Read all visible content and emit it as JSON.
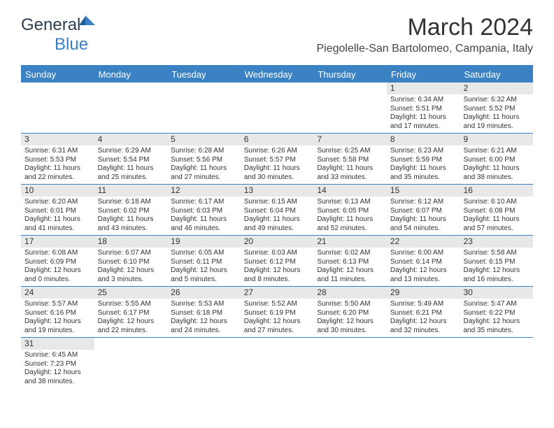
{
  "logo": {
    "part1": "General",
    "part2": "Blue"
  },
  "title": "March 2024",
  "location": "Piegolelle-San Bartolomeo, Campania, Italy",
  "colors": {
    "header_bg": "#3b82c4",
    "header_fg": "#ffffff",
    "daynum_bg": "#e8e8e8",
    "border": "#3b82c4",
    "text": "#333333"
  },
  "day_headers": [
    "Sunday",
    "Monday",
    "Tuesday",
    "Wednesday",
    "Thursday",
    "Friday",
    "Saturday"
  ],
  "weeks": [
    [
      {
        "n": "",
        "sunrise": "",
        "sunset": "",
        "daylight1": "",
        "daylight2": ""
      },
      {
        "n": "",
        "sunrise": "",
        "sunset": "",
        "daylight1": "",
        "daylight2": ""
      },
      {
        "n": "",
        "sunrise": "",
        "sunset": "",
        "daylight1": "",
        "daylight2": ""
      },
      {
        "n": "",
        "sunrise": "",
        "sunset": "",
        "daylight1": "",
        "daylight2": ""
      },
      {
        "n": "",
        "sunrise": "",
        "sunset": "",
        "daylight1": "",
        "daylight2": ""
      },
      {
        "n": "1",
        "sunrise": "Sunrise: 6:34 AM",
        "sunset": "Sunset: 5:51 PM",
        "daylight1": "Daylight: 11 hours",
        "daylight2": "and 17 minutes."
      },
      {
        "n": "2",
        "sunrise": "Sunrise: 6:32 AM",
        "sunset": "Sunset: 5:52 PM",
        "daylight1": "Daylight: 11 hours",
        "daylight2": "and 19 minutes."
      }
    ],
    [
      {
        "n": "3",
        "sunrise": "Sunrise: 6:31 AM",
        "sunset": "Sunset: 5:53 PM",
        "daylight1": "Daylight: 11 hours",
        "daylight2": "and 22 minutes."
      },
      {
        "n": "4",
        "sunrise": "Sunrise: 6:29 AM",
        "sunset": "Sunset: 5:54 PM",
        "daylight1": "Daylight: 11 hours",
        "daylight2": "and 25 minutes."
      },
      {
        "n": "5",
        "sunrise": "Sunrise: 6:28 AM",
        "sunset": "Sunset: 5:56 PM",
        "daylight1": "Daylight: 11 hours",
        "daylight2": "and 27 minutes."
      },
      {
        "n": "6",
        "sunrise": "Sunrise: 6:26 AM",
        "sunset": "Sunset: 5:57 PM",
        "daylight1": "Daylight: 11 hours",
        "daylight2": "and 30 minutes."
      },
      {
        "n": "7",
        "sunrise": "Sunrise: 6:25 AM",
        "sunset": "Sunset: 5:58 PM",
        "daylight1": "Daylight: 11 hours",
        "daylight2": "and 33 minutes."
      },
      {
        "n": "8",
        "sunrise": "Sunrise: 6:23 AM",
        "sunset": "Sunset: 5:59 PM",
        "daylight1": "Daylight: 11 hours",
        "daylight2": "and 35 minutes."
      },
      {
        "n": "9",
        "sunrise": "Sunrise: 6:21 AM",
        "sunset": "Sunset: 6:00 PM",
        "daylight1": "Daylight: 11 hours",
        "daylight2": "and 38 minutes."
      }
    ],
    [
      {
        "n": "10",
        "sunrise": "Sunrise: 6:20 AM",
        "sunset": "Sunset: 6:01 PM",
        "daylight1": "Daylight: 11 hours",
        "daylight2": "and 41 minutes."
      },
      {
        "n": "11",
        "sunrise": "Sunrise: 6:18 AM",
        "sunset": "Sunset: 6:02 PM",
        "daylight1": "Daylight: 11 hours",
        "daylight2": "and 43 minutes."
      },
      {
        "n": "12",
        "sunrise": "Sunrise: 6:17 AM",
        "sunset": "Sunset: 6:03 PM",
        "daylight1": "Daylight: 11 hours",
        "daylight2": "and 46 minutes."
      },
      {
        "n": "13",
        "sunrise": "Sunrise: 6:15 AM",
        "sunset": "Sunset: 6:04 PM",
        "daylight1": "Daylight: 11 hours",
        "daylight2": "and 49 minutes."
      },
      {
        "n": "14",
        "sunrise": "Sunrise: 6:13 AM",
        "sunset": "Sunset: 6:05 PM",
        "daylight1": "Daylight: 11 hours",
        "daylight2": "and 52 minutes."
      },
      {
        "n": "15",
        "sunrise": "Sunrise: 6:12 AM",
        "sunset": "Sunset: 6:07 PM",
        "daylight1": "Daylight: 11 hours",
        "daylight2": "and 54 minutes."
      },
      {
        "n": "16",
        "sunrise": "Sunrise: 6:10 AM",
        "sunset": "Sunset: 6:08 PM",
        "daylight1": "Daylight: 11 hours",
        "daylight2": "and 57 minutes."
      }
    ],
    [
      {
        "n": "17",
        "sunrise": "Sunrise: 6:08 AM",
        "sunset": "Sunset: 6:09 PM",
        "daylight1": "Daylight: 12 hours",
        "daylight2": "and 0 minutes."
      },
      {
        "n": "18",
        "sunrise": "Sunrise: 6:07 AM",
        "sunset": "Sunset: 6:10 PM",
        "daylight1": "Daylight: 12 hours",
        "daylight2": "and 3 minutes."
      },
      {
        "n": "19",
        "sunrise": "Sunrise: 6:05 AM",
        "sunset": "Sunset: 6:11 PM",
        "daylight1": "Daylight: 12 hours",
        "daylight2": "and 5 minutes."
      },
      {
        "n": "20",
        "sunrise": "Sunrise: 6:03 AM",
        "sunset": "Sunset: 6:12 PM",
        "daylight1": "Daylight: 12 hours",
        "daylight2": "and 8 minutes."
      },
      {
        "n": "21",
        "sunrise": "Sunrise: 6:02 AM",
        "sunset": "Sunset: 6:13 PM",
        "daylight1": "Daylight: 12 hours",
        "daylight2": "and 11 minutes."
      },
      {
        "n": "22",
        "sunrise": "Sunrise: 6:00 AM",
        "sunset": "Sunset: 6:14 PM",
        "daylight1": "Daylight: 12 hours",
        "daylight2": "and 13 minutes."
      },
      {
        "n": "23",
        "sunrise": "Sunrise: 5:58 AM",
        "sunset": "Sunset: 6:15 PM",
        "daylight1": "Daylight: 12 hours",
        "daylight2": "and 16 minutes."
      }
    ],
    [
      {
        "n": "24",
        "sunrise": "Sunrise: 5:57 AM",
        "sunset": "Sunset: 6:16 PM",
        "daylight1": "Daylight: 12 hours",
        "daylight2": "and 19 minutes."
      },
      {
        "n": "25",
        "sunrise": "Sunrise: 5:55 AM",
        "sunset": "Sunset: 6:17 PM",
        "daylight1": "Daylight: 12 hours",
        "daylight2": "and 22 minutes."
      },
      {
        "n": "26",
        "sunrise": "Sunrise: 5:53 AM",
        "sunset": "Sunset: 6:18 PM",
        "daylight1": "Daylight: 12 hours",
        "daylight2": "and 24 minutes."
      },
      {
        "n": "27",
        "sunrise": "Sunrise: 5:52 AM",
        "sunset": "Sunset: 6:19 PM",
        "daylight1": "Daylight: 12 hours",
        "daylight2": "and 27 minutes."
      },
      {
        "n": "28",
        "sunrise": "Sunrise: 5:50 AM",
        "sunset": "Sunset: 6:20 PM",
        "daylight1": "Daylight: 12 hours",
        "daylight2": "and 30 minutes."
      },
      {
        "n": "29",
        "sunrise": "Sunrise: 5:49 AM",
        "sunset": "Sunset: 6:21 PM",
        "daylight1": "Daylight: 12 hours",
        "daylight2": "and 32 minutes."
      },
      {
        "n": "30",
        "sunrise": "Sunrise: 5:47 AM",
        "sunset": "Sunset: 6:22 PM",
        "daylight1": "Daylight: 12 hours",
        "daylight2": "and 35 minutes."
      }
    ],
    [
      {
        "n": "31",
        "sunrise": "Sunrise: 6:45 AM",
        "sunset": "Sunset: 7:23 PM",
        "daylight1": "Daylight: 12 hours",
        "daylight2": "and 38 minutes."
      },
      {
        "n": "",
        "sunrise": "",
        "sunset": "",
        "daylight1": "",
        "daylight2": ""
      },
      {
        "n": "",
        "sunrise": "",
        "sunset": "",
        "daylight1": "",
        "daylight2": ""
      },
      {
        "n": "",
        "sunrise": "",
        "sunset": "",
        "daylight1": "",
        "daylight2": ""
      },
      {
        "n": "",
        "sunrise": "",
        "sunset": "",
        "daylight1": "",
        "daylight2": ""
      },
      {
        "n": "",
        "sunrise": "",
        "sunset": "",
        "daylight1": "",
        "daylight2": ""
      },
      {
        "n": "",
        "sunrise": "",
        "sunset": "",
        "daylight1": "",
        "daylight2": ""
      }
    ]
  ]
}
